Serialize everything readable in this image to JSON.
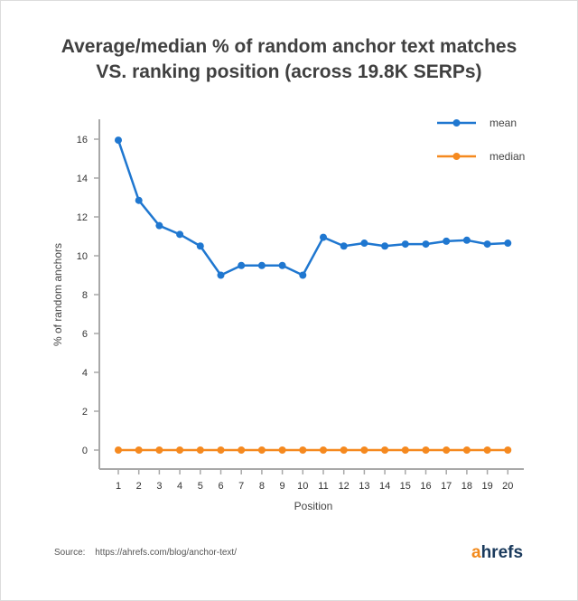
{
  "title_lines": [
    "Average/median % of random anchor text matches",
    "VS. ranking position (across 19.8K SERPs)"
  ],
  "source": {
    "label": "Source:",
    "url": "https://ahrefs.com/blog/anchor-text/"
  },
  "brand": {
    "first": "a",
    "rest": "hrefs",
    "first_color": "#f28a1c",
    "rest_color": "#1a3a5c"
  },
  "chart_data": {
    "type": "line",
    "title": "Average/median % of random anchor text matches VS. ranking position (across 19.8K SERPs)",
    "xlabel": "Position",
    "ylabel": "% of random anchors",
    "x": [
      1,
      2,
      3,
      4,
      5,
      6,
      7,
      8,
      9,
      10,
      11,
      12,
      13,
      14,
      15,
      16,
      17,
      18,
      19,
      20
    ],
    "ylim": [
      -1,
      17
    ],
    "yticks": [
      0,
      2,
      4,
      6,
      8,
      10,
      12,
      14,
      16
    ],
    "grid": false,
    "legend": "top-right",
    "series": [
      {
        "name": "mean",
        "color": "#1f77d0",
        "values": [
          15.95,
          12.85,
          11.55,
          11.1,
          10.5,
          9.0,
          9.5,
          9.5,
          9.5,
          9.0,
          10.95,
          10.5,
          10.65,
          10.5,
          10.6,
          10.6,
          10.75,
          10.8,
          10.6,
          10.65
        ]
      },
      {
        "name": "median",
        "color": "#f5891f",
        "values": [
          0,
          0,
          0,
          0,
          0,
          0,
          0,
          0,
          0,
          0,
          0,
          0,
          0,
          0,
          0,
          0,
          0,
          0,
          0,
          0
        ]
      }
    ]
  }
}
